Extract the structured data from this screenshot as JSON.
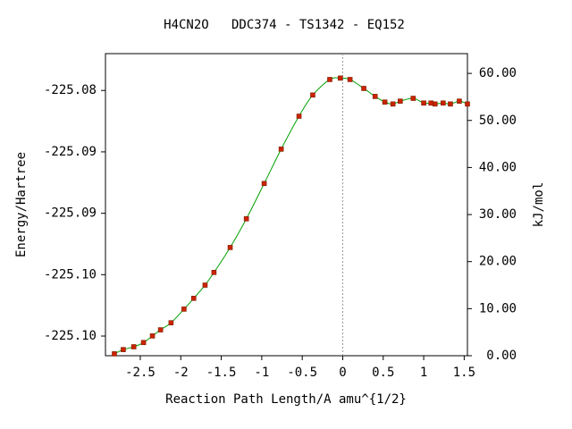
{
  "chart_data": {
    "type": "line",
    "title": "H4CN2O   DDC374 - TS1342 - EQ152",
    "xlabel": "Reaction Path Length/A amu^{1/2}",
    "ylabel": "Energy/Hartree",
    "y2label": "kJ/mol",
    "xlim": [
      -2.93,
      1.54
    ],
    "xticks": [
      -2.5,
      -2,
      -1.5,
      -1,
      -0.5,
      0,
      0.5,
      1,
      1.5
    ],
    "ylim": [
      -225.1016,
      -225.077
    ],
    "yticks": [
      {
        "value": -225.08,
        "label": "-225.08"
      },
      {
        "value": -225.085,
        "label": "-225.09"
      },
      {
        "value": -225.09,
        "label": "-225.09"
      },
      {
        "value": -225.095,
        "label": "-225.10"
      },
      {
        "value": -225.1,
        "label": "-225.10"
      }
    ],
    "y2lim": [
      0,
      64.2
    ],
    "y2ticks": [
      {
        "value": 0,
        "label": "0.00"
      },
      {
        "value": 10,
        "label": "10.00"
      },
      {
        "value": 20,
        "label": "20.00"
      },
      {
        "value": 30,
        "label": "30.00"
      },
      {
        "value": 40,
        "label": "40.00"
      },
      {
        "value": 50,
        "label": "50.00"
      },
      {
        "value": 60,
        "label": "60.00"
      }
    ],
    "vline_x": 0,
    "x": [
      -2.82,
      -2.71,
      -2.58,
      -2.46,
      -2.35,
      -2.25,
      -2.12,
      -1.96,
      -1.84,
      -1.7,
      -1.59,
      -1.39,
      -1.19,
      -0.97,
      -0.76,
      -0.54,
      -0.37,
      -0.16,
      -0.03,
      0.09,
      0.26,
      0.4,
      0.52,
      0.62,
      0.71,
      0.87,
      1.0,
      1.09,
      1.14,
      1.24,
      1.33,
      1.44,
      1.54
    ],
    "series": [
      {
        "color": "#00a000",
        "marker_color": "#cc2200",
        "axis": "y2",
        "values": [
          0.4,
          1.3,
          1.9,
          2.8,
          4.2,
          5.5,
          7.0,
          9.9,
          12.2,
          15.0,
          17.7,
          23.0,
          29.1,
          36.6,
          43.9,
          50.9,
          55.4,
          58.7,
          59.0,
          58.7,
          56.8,
          55.1,
          53.9,
          53.5,
          54.1,
          54.7,
          53.7,
          53.7,
          53.5,
          53.7,
          53.5,
          54.1,
          53.5
        ]
      }
    ]
  }
}
